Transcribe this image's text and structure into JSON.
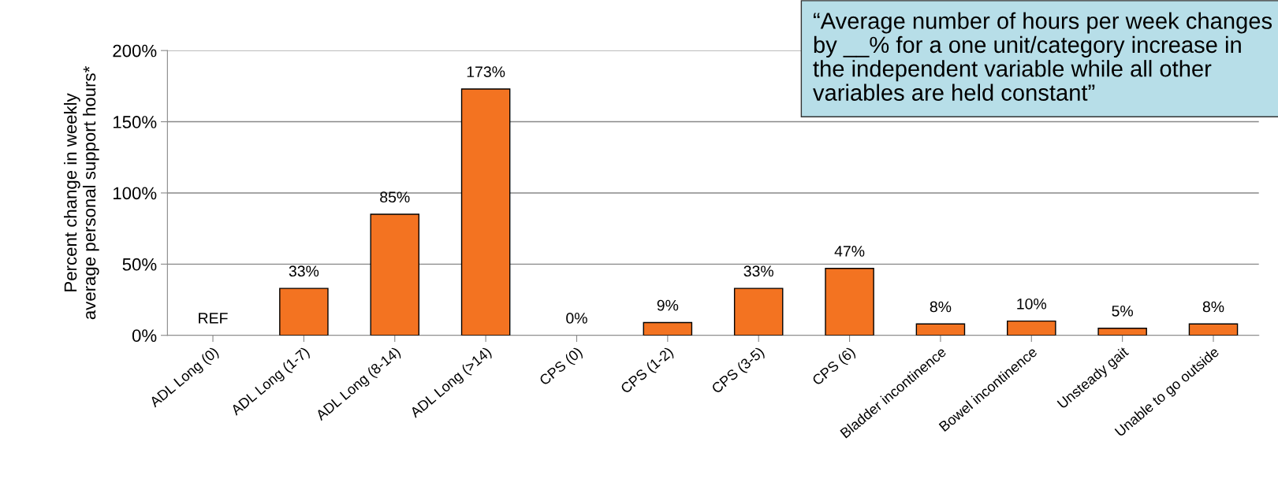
{
  "chart_data": {
    "type": "bar",
    "ylabel": "Percent change in weekly\naverage personal support hours*",
    "categories": [
      "ADL Long (0)",
      "ADL Long (1-7)",
      "ADL Long (8-14)",
      "ADL Long (>14)",
      "CPS (0)",
      "CPS (1-2)",
      "CPS (3-5)",
      "CPS (6)",
      "Bladder incontinence",
      "Bowel incontinence",
      "Unsteady gait",
      "Unable to go outside"
    ],
    "values": [
      0,
      33,
      85,
      173,
      0,
      9,
      33,
      47,
      8,
      10,
      5,
      8
    ],
    "value_labels": [
      "REF",
      "33%",
      "85%",
      "173%",
      "0%",
      "9%",
      "33%",
      "47%",
      "8%",
      "10%",
      "5%",
      "8%"
    ],
    "color": "#f37321",
    "ylim": [
      0,
      200
    ],
    "yticks": [
      {
        "value": 0,
        "label": "0%"
      },
      {
        "value": 50,
        "label": "50%"
      },
      {
        "value": 100,
        "label": "100%"
      },
      {
        "value": 150,
        "label": "150%"
      },
      {
        "value": 200,
        "label": "200%"
      }
    ],
    "grid": "y",
    "annotations": [
      "“Average number of hours per week changes by __% for a one unit/category increase in the independent variable while all other variables are held constant”"
    ]
  }
}
